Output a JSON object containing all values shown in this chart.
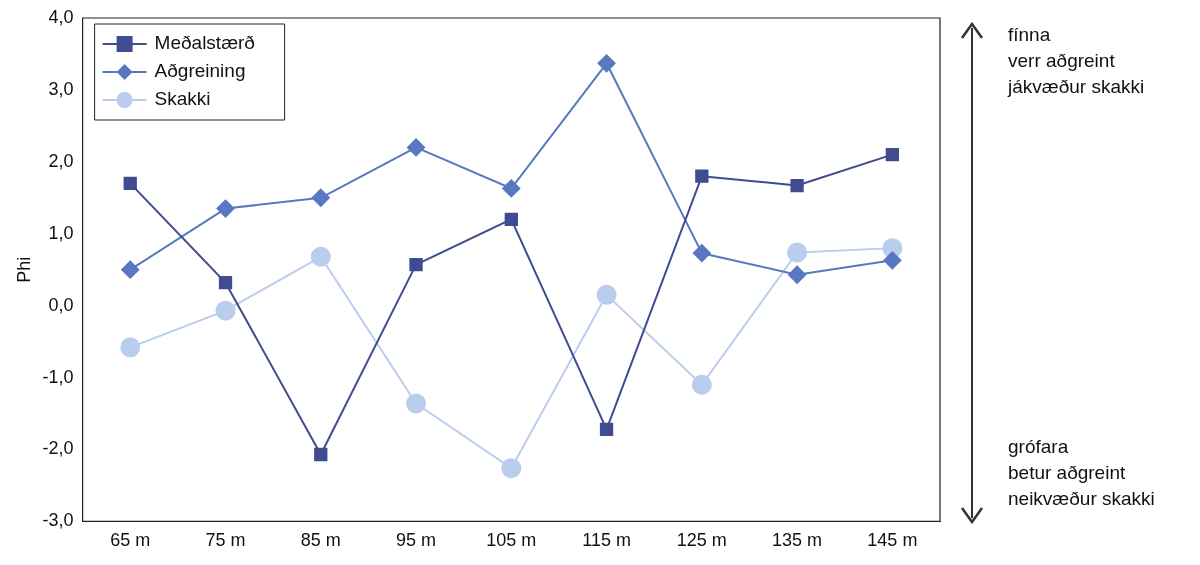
{
  "chart_data": {
    "type": "line",
    "ylabel": "Phi",
    "categories": [
      "65 m",
      "75 m",
      "85 m",
      "95 m",
      "105 m",
      "115 m",
      "125 m",
      "135 m",
      "145 m"
    ],
    "series": [
      {
        "name": "Meðalstærð",
        "color": "#3f4c8f",
        "marker": "square",
        "values": [
          1.7,
          0.32,
          -2.07,
          0.57,
          1.2,
          -1.72,
          1.8,
          1.67,
          2.1
        ]
      },
      {
        "name": "Aðgreining",
        "color": "#5878c2",
        "marker": "diamond",
        "values": [
          0.5,
          1.35,
          1.5,
          2.2,
          1.63,
          3.37,
          0.73,
          0.43,
          0.63
        ]
      },
      {
        "name": "Skakki",
        "color": "#b9cdec",
        "marker": "circle",
        "values": [
          -0.58,
          -0.07,
          0.68,
          -1.36,
          -2.26,
          0.15,
          -1.1,
          0.74,
          0.8
        ]
      }
    ],
    "ylim": [
      -3,
      4
    ],
    "yticks": [
      {
        "value": -3,
        "label": "-3,0"
      },
      {
        "value": -2,
        "label": "-2,0"
      },
      {
        "value": -1,
        "label": "-1,0"
      },
      {
        "value": 0,
        "label": "0,0"
      },
      {
        "value": 1,
        "label": "1,0"
      },
      {
        "value": 2,
        "label": "2,0"
      },
      {
        "value": 3,
        "label": "3,0"
      },
      {
        "value": 4,
        "label": "4,0"
      }
    ],
    "grid": false,
    "legend": "top left",
    "line_style": "solid",
    "annotations": [
      "fínna\nverr aðgreint\njákvæður skakki",
      "grófara\nbetur aðgreint\nneikvæður skakki"
    ]
  }
}
